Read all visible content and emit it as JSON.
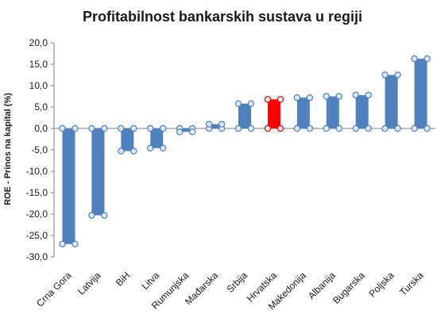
{
  "chart_data": {
    "type": "bar",
    "title": "Profitabilnost bankarskih sustava u regiji",
    "ylabel": "ROE - Prinos na kapital (%)",
    "xlabel": "",
    "ylim": [
      -30,
      20
    ],
    "ytick_step": 5,
    "ytick_labels": [
      "20,0",
      "15,0",
      "10,0",
      "5,0",
      "0,0",
      "-5,0",
      "-10,0",
      "-15,0",
      "-20,0",
      "-25,0",
      "-30,0"
    ],
    "grid": false,
    "categories": [
      "Crna Gora",
      "Latvija",
      "BiH",
      "Litva",
      "Rumunjska",
      "Mađarska",
      "Srbija",
      "Hrvatska",
      "Makedonija",
      "Albanija",
      "Bugarska",
      "Poljska",
      "Turska"
    ],
    "values": [
      -27.0,
      -20.3,
      -5.3,
      -4.6,
      -0.8,
      1.0,
      5.8,
      6.8,
      7.2,
      7.5,
      7.8,
      12.5,
      16.3
    ],
    "highlight": "Hrvatska",
    "colors": {
      "bar": "#4f81bd",
      "highlight": "#ff0000",
      "marker_fill": "#dde8f5",
      "marker_stroke": "#4f81bd",
      "axis": "#7f7f7f"
    }
  }
}
